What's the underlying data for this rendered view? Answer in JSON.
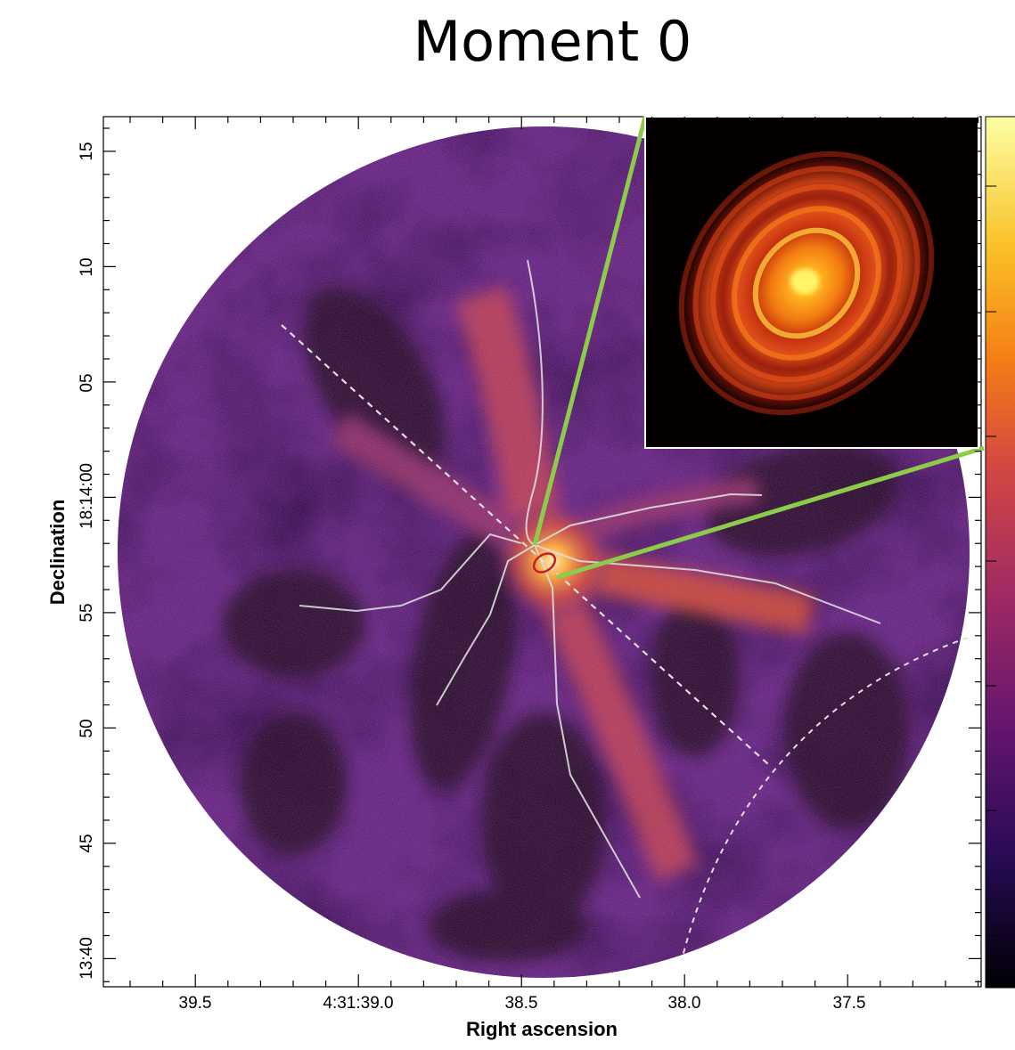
{
  "title": "Moment 0",
  "x_axis": {
    "label": "Right ascension",
    "ticks": [
      "39.5",
      "4:31:39.0",
      "38.5",
      "38.0",
      "37.5"
    ]
  },
  "y_axis": {
    "label": "Declination",
    "ticks": [
      "15",
      "10",
      "05",
      "18:14:00",
      "55",
      "50",
      "45",
      "13:40"
    ]
  },
  "colorbar": {
    "colormap": "inferno"
  },
  "inset": {
    "description_icon": "protoplanetary-disk-image"
  },
  "colors": {
    "background_dark": "#0c0410",
    "emission_mid": "#5a1a78",
    "emission_bright": "#f08a20",
    "emission_peak": "#fff0a0",
    "inset_link": "#8ccc4a",
    "filament_lines": "#dddddd",
    "source_ellipse": "#c0202a"
  }
}
